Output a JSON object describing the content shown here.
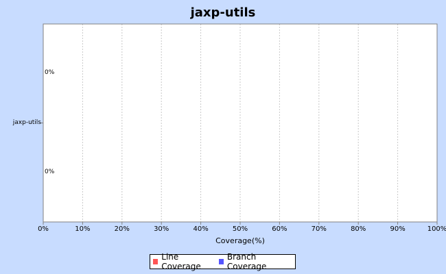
{
  "chart_data": {
    "type": "bar",
    "orientation": "horizontal",
    "title": "jaxp-utils",
    "categories": [
      "jaxp-utils"
    ],
    "series": [
      {
        "name": "Line Coverage",
        "values": [
          0
        ],
        "color": "#ff5555",
        "label": "0%"
      },
      {
        "name": "Branch Coverage",
        "values": [
          0
        ],
        "color": "#5555ff",
        "label": "0%"
      }
    ],
    "xlabel": "Coverage(%)",
    "ylabel": "",
    "xlim": [
      0,
      100
    ],
    "xticks": [
      "0%",
      "10%",
      "20%",
      "30%",
      "40%",
      "50%",
      "60%",
      "70%",
      "80%",
      "90%",
      "100%"
    ],
    "grid": true,
    "legend": "bottom"
  }
}
